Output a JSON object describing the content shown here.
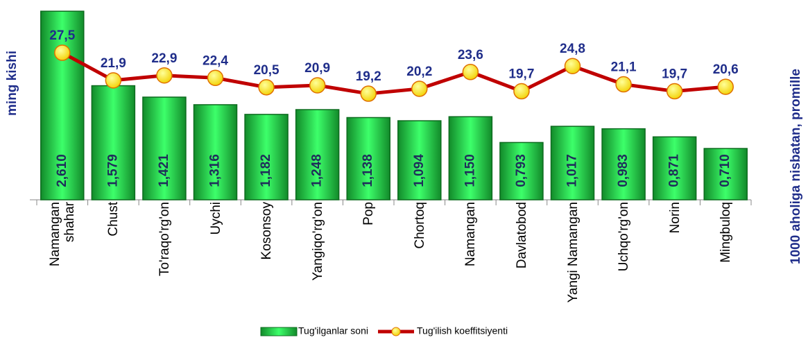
{
  "chart_data": {
    "type": "bar-line",
    "y_label": "ming kishi",
    "y2_label": "1000 aholiga nisbatan, promille",
    "categories": [
      "Namangan shahar",
      "Chust",
      "To'raqo'rg'on",
      "Uychi",
      "Kosonsoy",
      "Yangiqo'rg'on",
      "Pop",
      "Chortoq",
      "Namangan",
      "Davlatobod",
      "Yangi Namangan",
      "Uchqo'rg'on",
      "Norin",
      "Mingbuloq"
    ],
    "series": [
      {
        "name": "Tug'ilganlar soni",
        "type": "bar",
        "axis": "y",
        "color": "#22c043",
        "values": [
          2.61,
          1.579,
          1.421,
          1.316,
          1.182,
          1.248,
          1.138,
          1.094,
          1.15,
          0.793,
          1.017,
          0.983,
          0.871,
          0.71
        ],
        "value_labels": [
          "2,610",
          "1,579",
          "1,421",
          "1,316",
          "1,182",
          "1,248",
          "1,138",
          "1,094",
          "1,150",
          "0,793",
          "1,017",
          "0,983",
          "0,871",
          "0,710"
        ]
      },
      {
        "name": "Tug'ilish koeffitsiyenti",
        "type": "line",
        "axis": "y2",
        "color": "#c00000",
        "values": [
          27.5,
          21.9,
          22.9,
          22.4,
          20.5,
          20.9,
          19.2,
          20.2,
          23.6,
          19.7,
          24.8,
          21.1,
          19.7,
          20.6
        ],
        "value_labels": [
          "27,5",
          "21,9",
          "22,9",
          "22,4",
          "20,5",
          "20,9",
          "19,2",
          "20,2",
          "23,6",
          "19,7",
          "24,8",
          "21,1",
          "19,7",
          "20,6"
        ]
      }
    ],
    "ylim": [
      0,
      2.65
    ],
    "y2lim": [
      -2.3,
      36.5
    ]
  }
}
